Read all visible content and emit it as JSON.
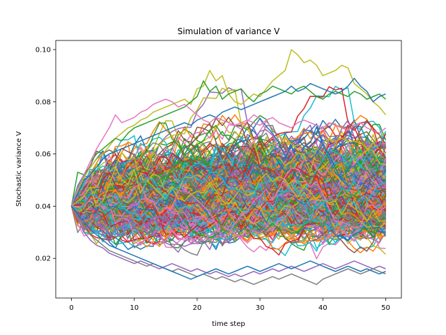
{
  "chart_data": {
    "type": "line",
    "title": "Simulation of variance V",
    "xlabel": "time step",
    "ylabel": "Stochastic variance V",
    "xlim": [
      -2.5,
      52.5
    ],
    "ylim": [
      0.0048,
      0.1035
    ],
    "x_ticks": [
      0,
      10,
      20,
      30,
      40,
      50
    ],
    "y_ticks": [
      0.02,
      0.04,
      0.06,
      0.08,
      0.1
    ],
    "y_tick_labels": [
      "0.02",
      "0.04",
      "0.06",
      "0.08",
      "0.10"
    ],
    "grid": false,
    "legend": "none",
    "x": [
      0,
      1,
      2,
      3,
      4,
      5,
      6,
      7,
      8,
      9,
      10,
      11,
      12,
      13,
      14,
      15,
      16,
      17,
      18,
      19,
      20,
      21,
      22,
      23,
      24,
      25,
      26,
      27,
      28,
      29,
      30,
      31,
      32,
      33,
      34,
      35,
      36,
      37,
      38,
      39,
      40,
      41,
      42,
      43,
      44,
      45,
      46,
      47,
      48,
      49,
      50
    ],
    "initial_value": 0.04,
    "palette": [
      "#1f77b4",
      "#ff7f0e",
      "#2ca02c",
      "#d62728",
      "#9467bd",
      "#8c564b",
      "#e377c2",
      "#7f7f7f",
      "#bcbd22",
      "#17becf"
    ],
    "series_count": 500,
    "highlight_series": [
      {
        "color": "#bcbd22",
        "values": [
          0.04,
          0.046,
          0.051,
          0.055,
          0.058,
          0.06,
          0.063,
          0.066,
          0.068,
          0.07,
          0.071,
          0.073,
          0.074,
          0.076,
          0.077,
          0.078,
          0.079,
          0.08,
          0.081,
          0.079,
          0.085,
          0.086,
          0.092,
          0.088,
          0.09,
          0.083,
          0.08,
          0.079,
          0.081,
          0.083,
          0.082,
          0.085,
          0.088,
          0.09,
          0.092,
          0.1,
          0.098,
          0.095,
          0.096,
          0.094,
          0.09,
          0.091,
          0.092,
          0.094,
          0.093,
          0.087,
          0.085,
          0.083,
          0.08,
          0.078,
          0.075
        ]
      },
      {
        "color": "#2ca02c",
        "values": [
          0.04,
          0.053,
          0.052,
          0.057,
          0.06,
          0.062,
          0.064,
          0.066,
          0.065,
          0.068,
          0.07,
          0.071,
          0.072,
          0.073,
          0.074,
          0.075,
          0.076,
          0.077,
          0.078,
          0.08,
          0.082,
          0.088,
          0.084,
          0.086,
          0.081,
          0.083,
          0.084,
          0.085,
          0.082,
          0.08,
          0.083,
          0.084,
          0.086,
          0.085,
          0.084,
          0.083,
          0.085,
          0.086,
          0.084,
          0.082,
          0.081,
          0.083,
          0.084,
          0.083,
          0.082,
          0.084,
          0.083,
          0.081,
          0.082,
          0.083,
          0.081
        ]
      },
      {
        "color": "#1f77b4",
        "values": [
          0.04,
          0.045,
          0.05,
          0.052,
          0.055,
          0.058,
          0.06,
          0.061,
          0.062,
          0.063,
          0.064,
          0.065,
          0.066,
          0.067,
          0.068,
          0.069,
          0.07,
          0.071,
          0.072,
          0.071,
          0.073,
          0.074,
          0.075,
          0.074,
          0.076,
          0.077,
          0.078,
          0.077,
          0.078,
          0.079,
          0.08,
          0.081,
          0.082,
          0.083,
          0.084,
          0.086,
          0.084,
          0.085,
          0.087,
          0.086,
          0.085,
          0.084,
          0.083,
          0.084,
          0.086,
          0.089,
          0.086,
          0.084,
          0.08,
          0.082,
          0.083
        ]
      },
      {
        "color": "#e377c2",
        "values": [
          0.04,
          0.047,
          0.052,
          0.057,
          0.062,
          0.066,
          0.07,
          0.075,
          0.072,
          0.073,
          0.074,
          0.076,
          0.077,
          0.079,
          0.08,
          0.081,
          0.08,
          0.078,
          0.079,
          0.077,
          0.075,
          0.073,
          0.072,
          0.074,
          0.073,
          0.072,
          0.071,
          0.072,
          0.073,
          0.072,
          0.071,
          0.073,
          0.074,
          0.072,
          0.071,
          0.07,
          0.072,
          0.073,
          0.072,
          0.071,
          0.07,
          0.072,
          0.071,
          0.07,
          0.069,
          0.071,
          0.072,
          0.07,
          0.069,
          0.068,
          0.07
        ]
      },
      {
        "color": "#9467bd",
        "values": [
          0.04,
          0.035,
          0.03,
          0.027,
          0.025,
          0.024,
          0.022,
          0.021,
          0.02,
          0.019,
          0.018,
          0.019,
          0.018,
          0.017,
          0.016,
          0.017,
          0.018,
          0.017,
          0.016,
          0.015,
          0.016,
          0.015,
          0.014,
          0.015,
          0.014,
          0.013,
          0.014,
          0.013,
          0.014,
          0.015,
          0.014,
          0.015,
          0.016,
          0.015,
          0.016,
          0.017,
          0.016,
          0.015,
          0.016,
          0.017,
          0.018,
          0.017,
          0.016,
          0.017,
          0.018,
          0.019,
          0.018,
          0.017,
          0.016,
          0.017,
          0.016
        ]
      },
      {
        "color": "#7f7f7f",
        "values": [
          0.04,
          0.036,
          0.032,
          0.029,
          0.027,
          0.025,
          0.023,
          0.022,
          0.021,
          0.02,
          0.019,
          0.018,
          0.017,
          0.018,
          0.017,
          0.016,
          0.015,
          0.016,
          0.015,
          0.014,
          0.013,
          0.014,
          0.013,
          0.012,
          0.013,
          0.012,
          0.011,
          0.012,
          0.011,
          0.01,
          0.011,
          0.012,
          0.013,
          0.012,
          0.013,
          0.014,
          0.013,
          0.012,
          0.011,
          0.01,
          0.012,
          0.013,
          0.014,
          0.015,
          0.016,
          0.015,
          0.014,
          0.015,
          0.016,
          0.015,
          0.014
        ]
      },
      {
        "color": "#1f77b4",
        "values": [
          0.04,
          0.037,
          0.034,
          0.031,
          0.029,
          0.027,
          0.025,
          0.024,
          0.023,
          0.022,
          0.021,
          0.02,
          0.019,
          0.018,
          0.017,
          0.016,
          0.015,
          0.014,
          0.013,
          0.012,
          0.013,
          0.014,
          0.015,
          0.016,
          0.015,
          0.014,
          0.015,
          0.016,
          0.017,
          0.016,
          0.015,
          0.016,
          0.017,
          0.018,
          0.017,
          0.016,
          0.017,
          0.018,
          0.019,
          0.018,
          0.017,
          0.016,
          0.015,
          0.016,
          0.017,
          0.016,
          0.015,
          0.016,
          0.015,
          0.014,
          0.015
        ]
      }
    ]
  }
}
